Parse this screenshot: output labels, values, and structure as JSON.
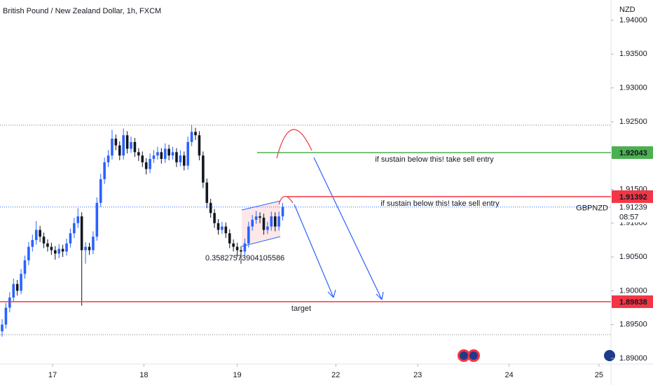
{
  "chart_data": {
    "type": "candlestick",
    "title": "British Pound / New Zealand Dollar, 1h, FXCM",
    "currency": "NZD",
    "symbol": "GBPNZD",
    "countdown": "08:57",
    "annotation": "0.35827573904105586",
    "up_color": "#2962ff",
    "down_color": "#131722",
    "grid": false,
    "ylim": [
      1.88917,
      1.943
    ],
    "yticks": [
      {
        "value": 1.89,
        "label": "1.89000"
      },
      {
        "value": 1.895,
        "label": "1.89500"
      },
      {
        "value": 1.9,
        "label": "1.90000"
      },
      {
        "value": 1.905,
        "label": "1.90500"
      },
      {
        "value": 1.91,
        "label": "1.91000"
      },
      {
        "value": 1.915,
        "label": "1.91500"
      },
      {
        "value": 1.92,
        "label": "1.92000"
      },
      {
        "value": 1.925,
        "label": "1.92500"
      },
      {
        "value": 1.93,
        "label": "1.93000"
      },
      {
        "value": 1.935,
        "label": "1.93500"
      },
      {
        "value": 1.94,
        "label": "1.94000"
      }
    ],
    "xlim": [
      -0.556,
      160.56
    ],
    "xticks": [
      {
        "value": 13.3,
        "label": "17"
      },
      {
        "value": 37.4,
        "label": "18"
      },
      {
        "value": 62,
        "label": "19"
      },
      {
        "value": 88,
        "label": "22"
      },
      {
        "value": 109.6,
        "label": "23"
      },
      {
        "value": 133.7,
        "label": "24"
      },
      {
        "value": 157.4,
        "label": "25"
      }
    ],
    "candles": [
      [
        1.894,
        1.8958,
        1.8932,
        1.895
      ],
      [
        1.895,
        1.8982,
        1.8944,
        1.8975
      ],
      [
        1.8975,
        1.8998,
        1.8968,
        1.899
      ],
      [
        1.899,
        1.9018,
        1.8984,
        1.901
      ],
      [
        1.901,
        1.9016,
        1.8993,
        1.9
      ],
      [
        1.9,
        1.9032,
        1.8995,
        1.9025
      ],
      [
        1.9025,
        1.9052,
        1.9018,
        1.9045
      ],
      [
        1.9045,
        1.9072,
        1.9038,
        1.9065
      ],
      [
        1.9065,
        1.9083,
        1.9058,
        1.9075
      ],
      [
        1.9075,
        1.9103,
        1.9068,
        1.909
      ],
      [
        1.909,
        1.9096,
        1.9072,
        1.908
      ],
      [
        1.908,
        1.9086,
        1.9063,
        1.907
      ],
      [
        1.907,
        1.9076,
        1.9058,
        1.9065
      ],
      [
        1.9065,
        1.9071,
        1.9053,
        1.906
      ],
      [
        1.906,
        1.9066,
        1.9046,
        1.9055
      ],
      [
        1.9055,
        1.9069,
        1.9048,
        1.9062
      ],
      [
        1.9062,
        1.9068,
        1.905,
        1.9058
      ],
      [
        1.9058,
        1.9077,
        1.9052,
        1.907
      ],
      [
        1.907,
        1.9092,
        1.9064,
        1.9085
      ],
      [
        1.9085,
        1.9108,
        1.9078,
        1.91
      ],
      [
        1.91,
        1.9122,
        1.9093,
        1.911
      ],
      [
        1.911,
        1.9116,
        1.8978,
        1.906
      ],
      [
        1.906,
        1.9072,
        1.904,
        1.9065
      ],
      [
        1.9065,
        1.9071,
        1.9053,
        1.906
      ],
      [
        1.906,
        1.9088,
        1.9054,
        1.908
      ],
      [
        1.908,
        1.9138,
        1.9074,
        1.913
      ],
      [
        1.913,
        1.9173,
        1.9124,
        1.9165
      ],
      [
        1.9165,
        1.9197,
        1.9158,
        1.919
      ],
      [
        1.919,
        1.9208,
        1.9183,
        1.92
      ],
      [
        1.92,
        1.9238,
        1.9194,
        1.9225
      ],
      [
        1.9225,
        1.9231,
        1.9208,
        1.9215
      ],
      [
        1.9215,
        1.9221,
        1.9193,
        1.92
      ],
      [
        1.92,
        1.924,
        1.9194,
        1.923
      ],
      [
        1.923,
        1.9236,
        1.9203,
        1.921
      ],
      [
        1.921,
        1.9228,
        1.9204,
        1.922
      ],
      [
        1.922,
        1.9226,
        1.9198,
        1.9205
      ],
      [
        1.9205,
        1.9211,
        1.9192,
        1.92
      ],
      [
        1.92,
        1.9206,
        1.9183,
        1.919
      ],
      [
        1.919,
        1.9196,
        1.9172,
        1.918
      ],
      [
        1.918,
        1.9203,
        1.9174,
        1.9195
      ],
      [
        1.9195,
        1.9208,
        1.9189,
        1.92
      ],
      [
        1.92,
        1.9213,
        1.9194,
        1.9205
      ],
      [
        1.9205,
        1.9211,
        1.9188,
        1.9195
      ],
      [
        1.9195,
        1.9218,
        1.9189,
        1.921
      ],
      [
        1.921,
        1.9216,
        1.9193,
        1.92
      ],
      [
        1.92,
        1.9213,
        1.9194,
        1.9205
      ],
      [
        1.9205,
        1.9211,
        1.9183,
        1.919
      ],
      [
        1.919,
        1.9208,
        1.9184,
        1.92
      ],
      [
        1.92,
        1.9206,
        1.9178,
        1.9185
      ],
      [
        1.9185,
        1.9228,
        1.9179,
        1.922
      ],
      [
        1.922,
        1.9245,
        1.9214,
        1.9235
      ],
      [
        1.9235,
        1.9241,
        1.9223,
        1.923
      ],
      [
        1.923,
        1.9236,
        1.9193,
        1.92
      ],
      [
        1.92,
        1.9206,
        1.9152,
        1.916
      ],
      [
        1.916,
        1.9166,
        1.9122,
        1.913
      ],
      [
        1.913,
        1.9136,
        1.9108,
        1.9115
      ],
      [
        1.9115,
        1.9121,
        1.9093,
        1.91
      ],
      [
        1.91,
        1.9106,
        1.9083,
        1.909
      ],
      [
        1.909,
        1.9102,
        1.9084,
        1.9095
      ],
      [
        1.9095,
        1.9101,
        1.9078,
        1.9085
      ],
      [
        1.9085,
        1.9091,
        1.9063,
        1.907
      ],
      [
        1.907,
        1.9076,
        1.9058,
        1.9065
      ],
      [
        1.9065,
        1.9071,
        1.905,
        1.906
      ],
      [
        1.906,
        1.9066,
        1.904,
        1.9058
      ],
      [
        1.9058,
        1.9077,
        1.9052,
        1.907
      ],
      [
        1.907,
        1.9102,
        1.9064,
        1.9095
      ],
      [
        1.9095,
        1.9112,
        1.9089,
        1.9105
      ],
      [
        1.9105,
        1.9118,
        1.9099,
        1.911
      ],
      [
        1.911,
        1.9116,
        1.91,
        1.9108
      ],
      [
        1.9108,
        1.9114,
        1.9083,
        1.909
      ],
      [
        1.909,
        1.9102,
        1.9084,
        1.9095
      ],
      [
        1.9095,
        1.9117,
        1.9089,
        1.911
      ],
      [
        1.911,
        1.9116,
        1.9088,
        1.9095
      ],
      [
        1.9095,
        1.9117,
        1.9089,
        1.911
      ],
      [
        1.911,
        1.913,
        1.9104,
        1.91239
      ]
    ],
    "last_price": 1.91239,
    "levels": [
      {
        "value": 1.92043,
        "color": "#4caf50",
        "text": "if sustain below this! take sell entry"
      },
      {
        "value": 1.91392,
        "color": "#f23645",
        "text": "if sustain below this! take sell entry"
      },
      {
        "value": 1.89838,
        "color": "#f23645",
        "text": "target"
      }
    ],
    "dotted": [
      1.9245,
      1.8935
    ]
  }
}
